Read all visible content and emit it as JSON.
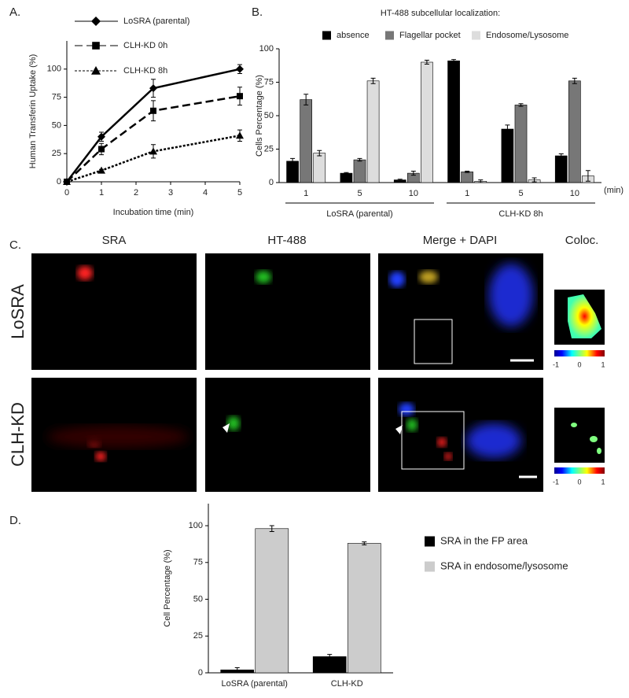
{
  "panels": [
    "A.",
    "B.",
    "C.",
    "D."
  ],
  "chart_data": [
    {
      "type": "line",
      "x_label": "Incubation time (min)",
      "y_label": "Human Transferin Uptake (%)",
      "x": [
        0,
        1,
        2.5,
        5
      ],
      "series": [
        {
          "name": "LoSRA (parental)",
          "color": "#000000",
          "dash": "solid",
          "marker": "diamond",
          "values": [
            0,
            40,
            83,
            100
          ],
          "errors": [
            0,
            4,
            8,
            4
          ]
        },
        {
          "name": "CLH-KD 0h",
          "color": "#000000",
          "dash": "dashed",
          "marker": "square",
          "values": [
            0,
            29,
            63,
            76
          ],
          "errors": [
            0,
            5,
            9,
            8
          ]
        },
        {
          "name": "CLH-KD 8h",
          "color": "#000000",
          "dash": "dotted",
          "marker": "triangle",
          "values": [
            0,
            10,
            27,
            41
          ],
          "errors": [
            0,
            1,
            6,
            5
          ]
        }
      ],
      "xlim": [
        0,
        5
      ],
      "xticks": [
        0,
        1,
        2,
        3,
        4,
        5
      ],
      "ylim": [
        0,
        125
      ],
      "yticks": [
        0,
        25,
        50,
        75,
        100
      ],
      "legend": "top"
    },
    {
      "type": "bar",
      "title": "HT-488 subcellular localization:",
      "y_label": "Cells Percentage (%)",
      "x_unit": "(min)",
      "categories": [
        "1",
        "5",
        "10",
        "1",
        "5",
        "10"
      ],
      "groups": [
        "LoSRA (parental)",
        "CLH-KD 8h"
      ],
      "series": [
        {
          "name": "absence",
          "color": "#000000",
          "values": [
            16,
            7,
            2,
            91,
            40,
            20
          ],
          "errors": [
            2,
            0.5,
            0.5,
            1,
            3,
            1.5
          ]
        },
        {
          "name": "Flagellar pocket",
          "color": "#777777",
          "values": [
            62,
            17,
            7,
            8,
            58,
            76
          ],
          "errors": [
            4,
            1,
            1.5,
            0.5,
            1,
            2
          ]
        },
        {
          "name": "Endosome/Lysosome",
          "color": "#dddddd",
          "values": [
            22,
            76,
            90,
            1,
            2,
            5
          ],
          "errors": [
            2,
            2,
            1.5,
            1,
            1.5,
            4
          ]
        }
      ],
      "ylim": [
        0,
        100
      ],
      "yticks": [
        0,
        25,
        50,
        75,
        100
      ],
      "legend": "top"
    },
    {
      "type": "bar",
      "y_label": "Cell Percentage (%)",
      "categories": [
        "LoSRA (parental)",
        "CLH-KD"
      ],
      "series": [
        {
          "name": "SRA in the FP area",
          "color": "#000000",
          "values": [
            2,
            11
          ],
          "errors": [
            1.5,
            1.5
          ]
        },
        {
          "name": "SRA in endosome/lysosome",
          "color": "#cccccc",
          "values": [
            98,
            88
          ],
          "errors": [
            2,
            1
          ]
        }
      ],
      "ylim": [
        0,
        115
      ],
      "yticks": [
        0,
        25,
        50,
        75,
        100
      ],
      "legend": "right"
    }
  ],
  "microscopy": {
    "columns": [
      "SRA",
      "HT-488",
      "Merge + DAPI",
      "Coloc."
    ],
    "rows": [
      "LoSRA",
      "CLH-KD"
    ],
    "colorbar_ticks": [
      -1,
      0,
      1
    ]
  }
}
